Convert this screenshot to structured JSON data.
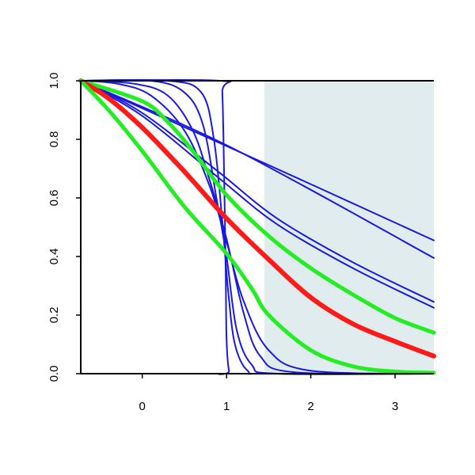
{
  "chart_data": {
    "type": "line",
    "title": "",
    "xlabel": "",
    "ylabel": "",
    "xlim": [
      -0.73,
      3.46
    ],
    "ylim": [
      0.0,
      1.0
    ],
    "x_ticks": [
      0,
      1,
      2,
      3
    ],
    "x_tick_labels": [
      "0",
      "1",
      "2",
      "3"
    ],
    "y_ticks": [
      0.0,
      0.2,
      0.4,
      0.6,
      0.8,
      1.0
    ],
    "y_tick_labels": [
      "0.0",
      "0.2",
      "0.4",
      "0.6",
      "0.8",
      "1.0"
    ],
    "grid": false,
    "shaded_region": {
      "x_from": 1.45,
      "x_to": 3.46,
      "color": "#e0eced"
    },
    "series": [
      {
        "color": "#1a1adf",
        "width": 2,
        "values": [
          [
            -0.73,
            1.0
          ],
          [
            1.44,
            0.72
          ],
          [
            3.46,
            0.455
          ]
        ]
      },
      {
        "color": "#1a1adf",
        "width": 2,
        "values": [
          [
            -0.73,
            1.0
          ],
          [
            1.07,
            0.77
          ],
          [
            3.46,
            0.395
          ]
        ]
      },
      {
        "color": "#1a1adf",
        "width": 2,
        "values": [
          [
            -0.73,
            1.0
          ],
          [
            0.0,
            0.89
          ],
          [
            0.9,
            0.69
          ],
          [
            1.6,
            0.53
          ],
          [
            2.5,
            0.38
          ],
          [
            3.46,
            0.245
          ]
        ]
      },
      {
        "color": "#1a1adf",
        "width": 2,
        "values": [
          [
            -0.73,
            1.0
          ],
          [
            0.0,
            0.88
          ],
          [
            0.9,
            0.67
          ],
          [
            1.6,
            0.51
          ],
          [
            2.5,
            0.36
          ],
          [
            3.46,
            0.225
          ]
        ]
      },
      {
        "color": "#1a1adf",
        "width": 2,
        "values": [
          [
            -0.73,
            1.0
          ],
          [
            -0.3,
            0.99
          ],
          [
            0.1,
            0.95
          ],
          [
            0.5,
            0.83
          ],
          [
            0.8,
            0.64
          ],
          [
            1.0,
            0.45
          ],
          [
            1.2,
            0.25
          ],
          [
            1.5,
            0.08
          ],
          [
            2.0,
            0.01
          ],
          [
            3.46,
            0.0
          ]
        ]
      },
      {
        "color": "#1a1adf",
        "width": 2,
        "values": [
          [
            -0.73,
            1.0
          ],
          [
            -0.1,
            0.99
          ],
          [
            0.3,
            0.95
          ],
          [
            0.6,
            0.83
          ],
          [
            0.8,
            0.66
          ],
          [
            1.0,
            0.46
          ],
          [
            1.2,
            0.21
          ],
          [
            1.4,
            0.06
          ],
          [
            1.8,
            0.005
          ],
          [
            3.46,
            0.0
          ]
        ]
      },
      {
        "color": "#1a1adf",
        "width": 2,
        "values": [
          [
            -0.73,
            1.0
          ],
          [
            0.1,
            1.0
          ],
          [
            0.5,
            0.96
          ],
          [
            0.72,
            0.85
          ],
          [
            0.88,
            0.6
          ],
          [
            1.0,
            0.4
          ],
          [
            1.12,
            0.15
          ],
          [
            1.3,
            0.03
          ],
          [
            1.6,
            0.0
          ],
          [
            3.46,
            0.0
          ]
        ]
      },
      {
        "color": "#1a1adf",
        "width": 2,
        "values": [
          [
            -0.73,
            1.0
          ],
          [
            0.3,
            1.0
          ],
          [
            0.7,
            0.96
          ],
          [
            0.85,
            0.8
          ],
          [
            0.95,
            0.52
          ],
          [
            1.02,
            0.28
          ],
          [
            1.1,
            0.1
          ],
          [
            1.25,
            0.01
          ],
          [
            1.5,
            0.0
          ],
          [
            3.46,
            0.0
          ]
        ]
      },
      {
        "color": "#1a1adf",
        "width": 2,
        "values": [
          [
            -0.73,
            1.0
          ],
          [
            0.92,
            1.0
          ],
          [
            0.95,
            0.96
          ],
          [
            0.97,
            0.7
          ],
          [
            0.99,
            0.35
          ],
          [
            1.0,
            0.12
          ],
          [
            1.03,
            0.01
          ],
          [
            1.1,
            0.0
          ],
          [
            3.46,
            0.0
          ]
        ]
      },
      {
        "color": "#22ee22",
        "width": 5,
        "values": [
          [
            -0.73,
            1.0
          ],
          [
            0.0,
            0.93
          ],
          [
            0.3,
            0.86
          ],
          [
            0.6,
            0.76
          ],
          [
            1.0,
            0.61
          ],
          [
            1.5,
            0.47
          ],
          [
            2.0,
            0.36
          ],
          [
            2.5,
            0.27
          ],
          [
            3.0,
            0.19
          ],
          [
            3.46,
            0.14
          ]
        ]
      },
      {
        "color": "#ff1a1a",
        "width": 6,
        "values": [
          [
            -0.73,
            1.0
          ],
          [
            -0.4,
            0.94
          ],
          [
            0.0,
            0.84
          ],
          [
            0.5,
            0.69
          ],
          [
            1.0,
            0.53
          ],
          [
            1.5,
            0.39
          ],
          [
            2.0,
            0.26
          ],
          [
            2.5,
            0.17
          ],
          [
            3.0,
            0.11
          ],
          [
            3.46,
            0.06
          ]
        ]
      },
      {
        "color": "#22ee22",
        "width": 5,
        "values": [
          [
            -0.73,
            1.0
          ],
          [
            -0.4,
            0.9
          ],
          [
            0.0,
            0.76
          ],
          [
            0.5,
            0.57
          ],
          [
            1.0,
            0.41
          ],
          [
            1.3,
            0.29
          ],
          [
            1.5,
            0.2
          ],
          [
            2.0,
            0.08
          ],
          [
            2.5,
            0.025
          ],
          [
            3.0,
            0.007
          ],
          [
            3.46,
            0.003
          ]
        ]
      }
    ]
  }
}
